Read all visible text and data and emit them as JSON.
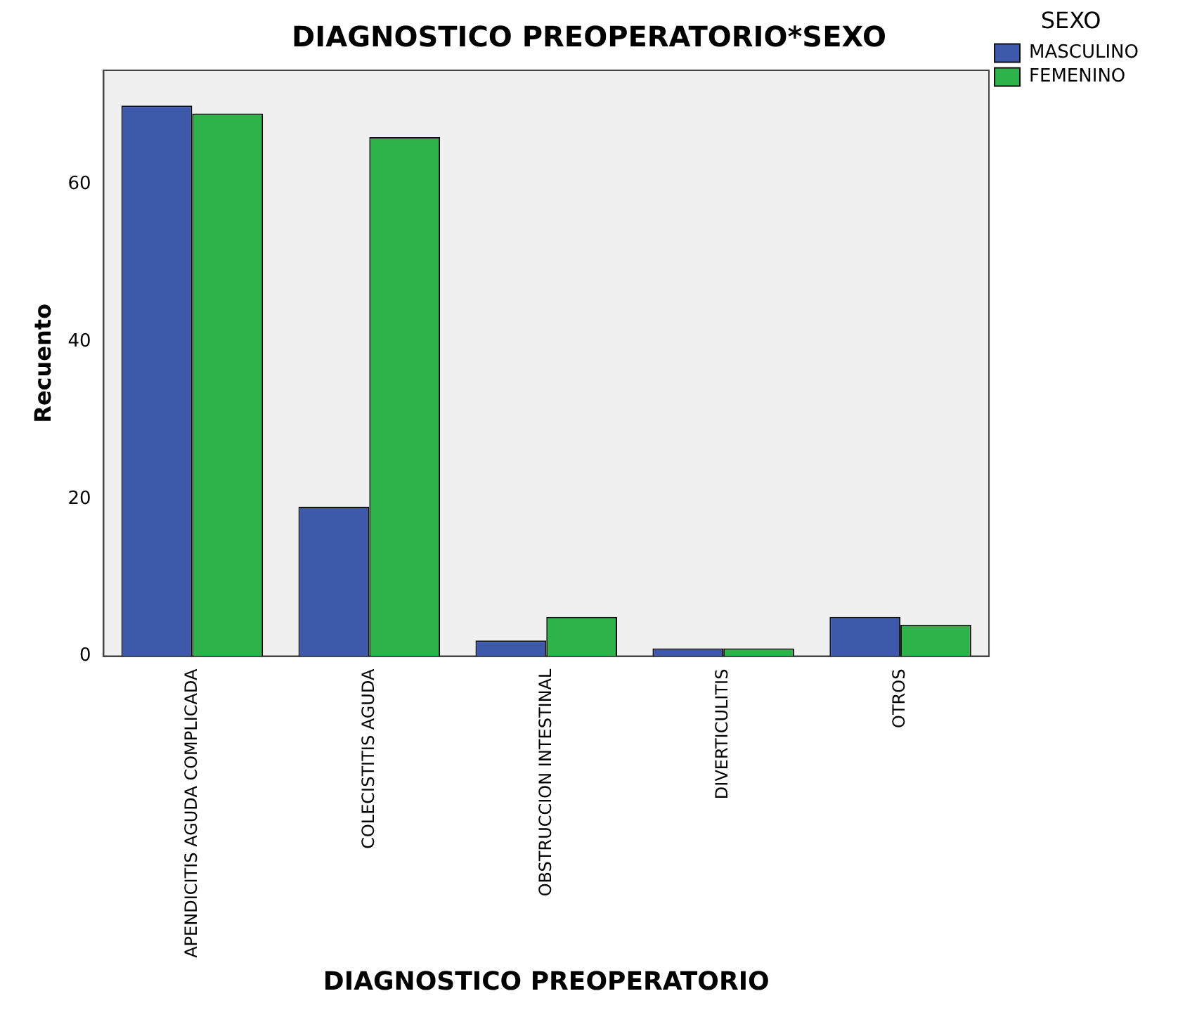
{
  "chart_data": {
    "type": "bar",
    "title": "DIAGNOSTICO PREOPERATORIO*SEXO",
    "xlabel": "DIAGNOSTICO PREOPERATORIO",
    "ylabel": "Recuento",
    "legend_title": "SEXO",
    "categories": [
      "APENDICITIS AGUDA COMPLICADA",
      "COLECISTITIS AGUDA",
      "OBSTRUCCION INTESTINAL",
      "DIVERTICULITIS",
      "OTROS"
    ],
    "series": [
      {
        "name": "MASCULINO",
        "color": "#3e58ac",
        "values": [
          70,
          19,
          2,
          1,
          5
        ]
      },
      {
        "name": "FEMENINO",
        "color": "#2db34a",
        "values": [
          69,
          66,
          5,
          1,
          4
        ]
      }
    ],
    "ylim": [
      0,
      74.5
    ],
    "yticks": [
      0,
      20,
      40,
      60
    ],
    "grid": false,
    "legend": "top right"
  }
}
